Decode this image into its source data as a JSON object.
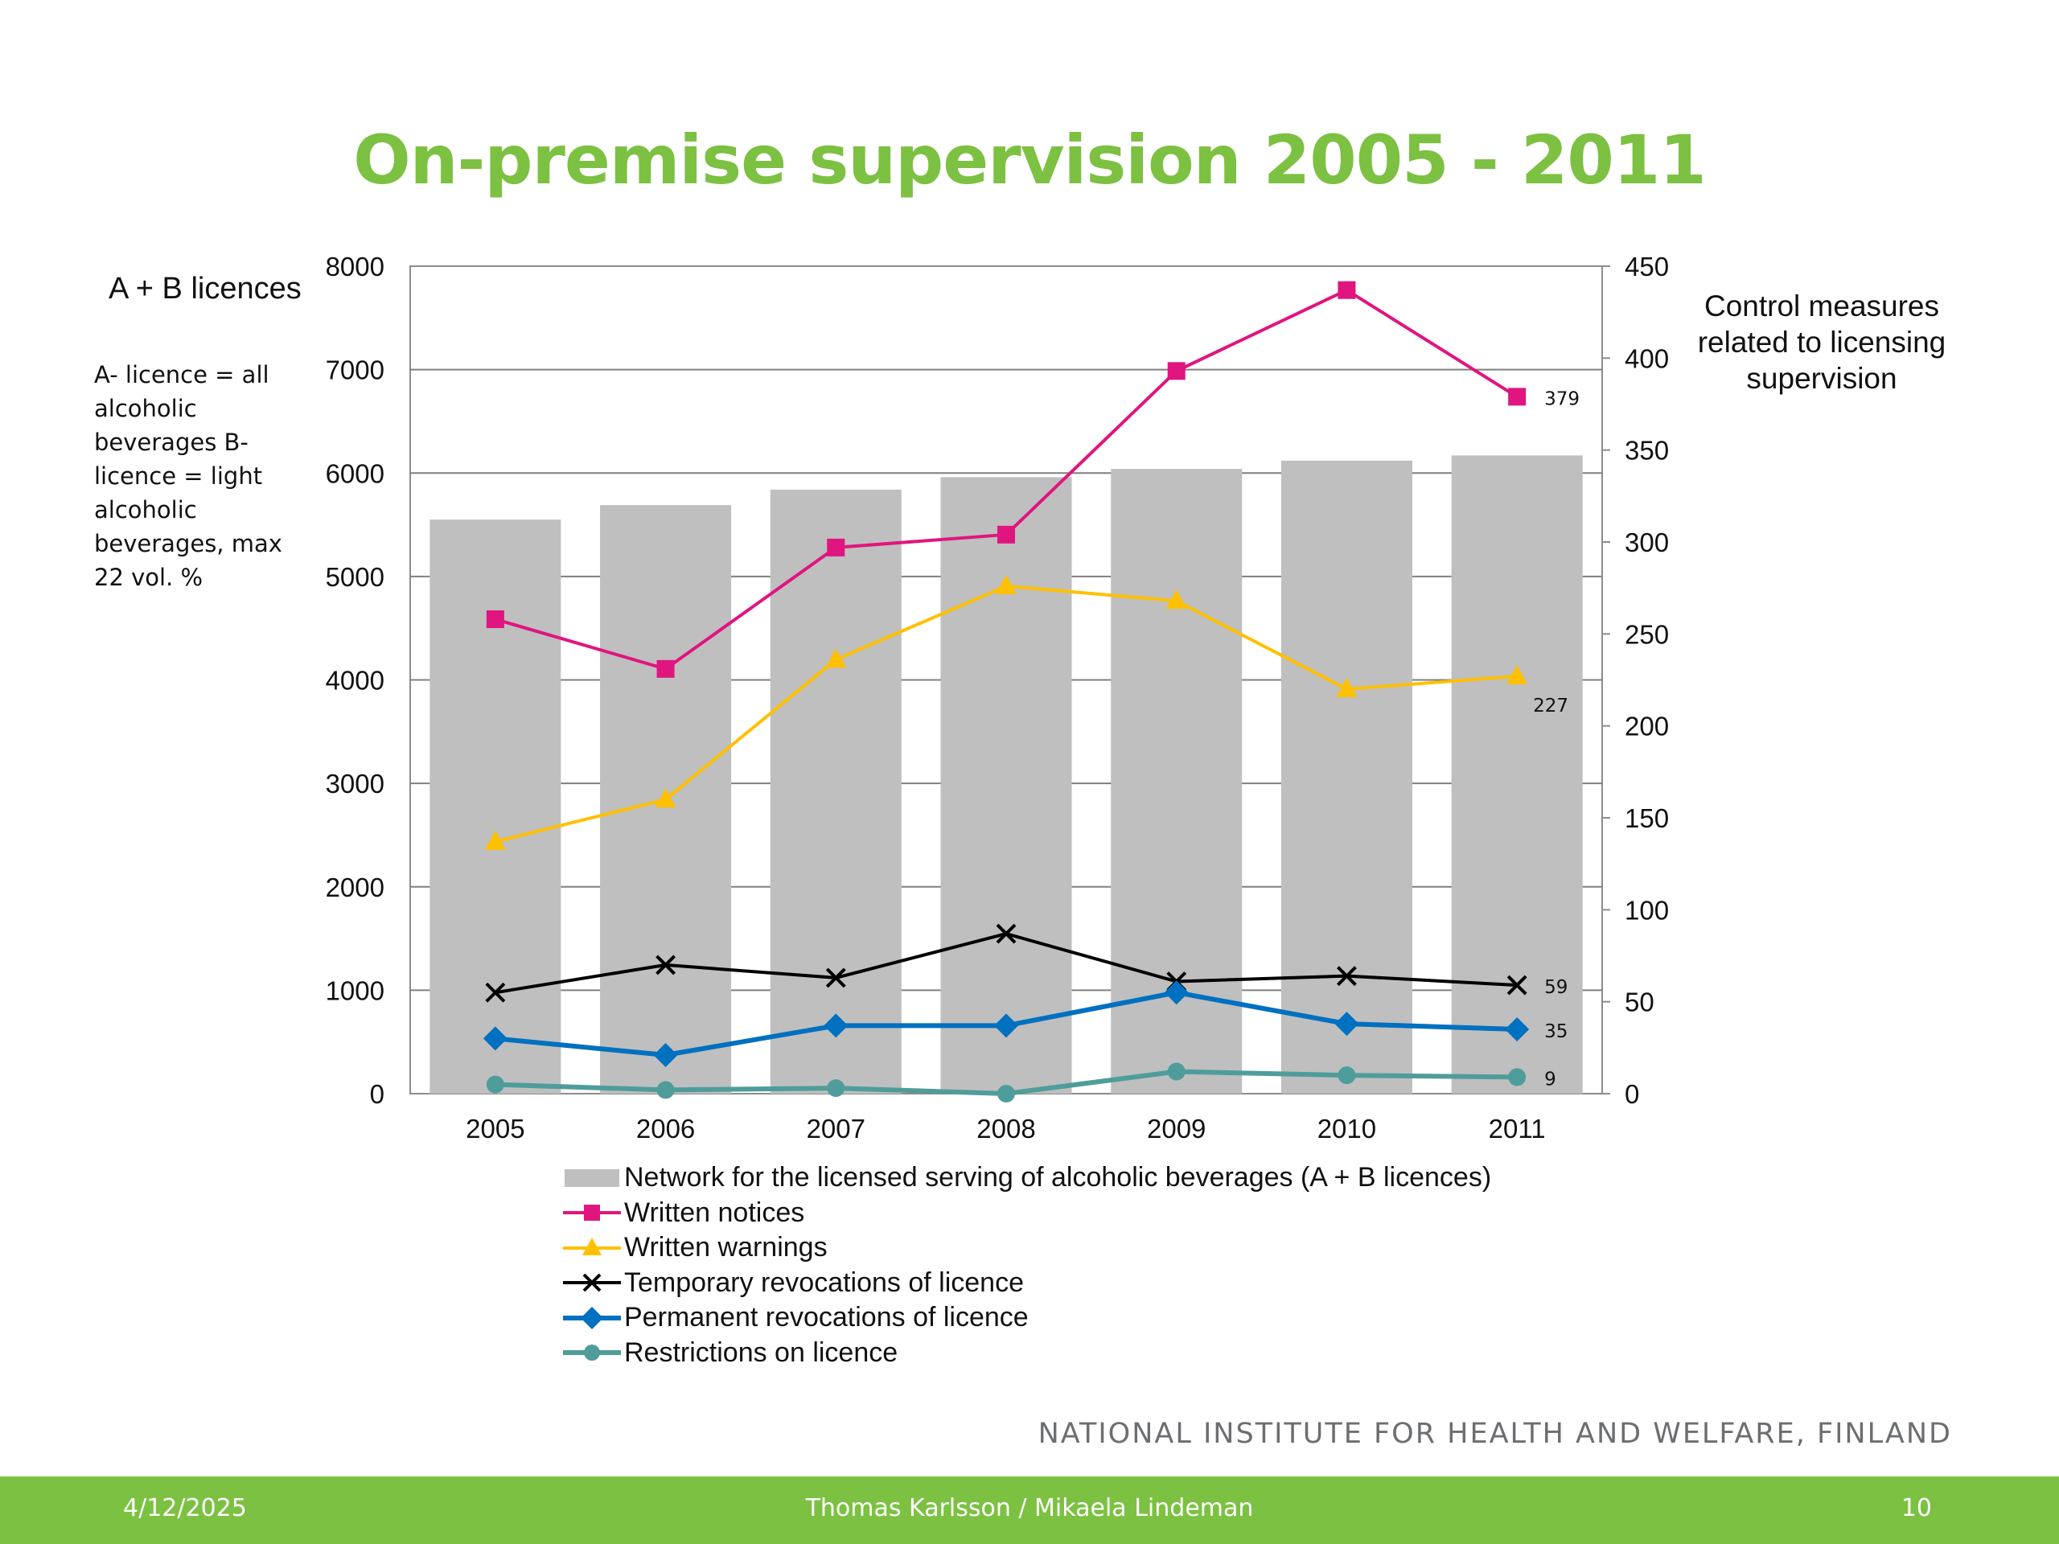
{
  "slide": {
    "title": "On-premise supervision 2005 - 2011",
    "left_axis_title": "A + B licences",
    "left_note": "A- licence = all alcoholic beverages B- licence = light alcoholic beverages, max 22 vol. %",
    "right_axis_title": "Control measures related to licensing supervision",
    "organization": "NATIONAL INSTITUTE FOR HEALTH AND WELFARE, FINLAND"
  },
  "footer": {
    "date": "4/12/2025",
    "authors": "Thomas Karlsson / Mikaela Lindeman",
    "page": "10"
  },
  "colors": {
    "title": "#7cc142",
    "footer_bg": "#7cc142",
    "bars": "#bfbfbf",
    "grid": "#7f7f7f"
  },
  "chart_data": {
    "type": "bar",
    "categories": [
      "2005",
      "2006",
      "2007",
      "2008",
      "2009",
      "2010",
      "2011"
    ],
    "left_axis": {
      "label": "A + B licences",
      "ylim": [
        0,
        8000
      ],
      "ticks": [
        "0",
        "1000",
        "2000",
        "3000",
        "4000",
        "5000",
        "6000",
        "7000",
        "8000"
      ]
    },
    "right_axis": {
      "label": "Control measures related to licensing supervision",
      "ylim": [
        0,
        450
      ],
      "ticks": [
        "0",
        "50",
        "100",
        "150",
        "200",
        "250",
        "300",
        "350",
        "400",
        "450"
      ]
    },
    "grid": true,
    "legend_position": "bottom",
    "series": [
      {
        "name": "Network for the licensed serving of alcoholic beverages (A + B licences)",
        "type": "bar",
        "axis": "left",
        "color": "#bfbfbf",
        "marker": "bar",
        "values": [
          5550,
          5690,
          5840,
          5960,
          6040,
          6120,
          6170
        ]
      },
      {
        "name": "Written notices",
        "type": "line",
        "axis": "right",
        "color": "#e0157f",
        "marker": "square",
        "values": [
          258,
          231,
          297,
          304,
          393,
          437,
          379
        ],
        "end_label": "379"
      },
      {
        "name": "Written warnings",
        "type": "line",
        "axis": "right",
        "color": "#ffc000",
        "marker": "triangle",
        "values": [
          137,
          160,
          236,
          276,
          268,
          220,
          227
        ],
        "end_label": "227"
      },
      {
        "name": "Temporary revocations of licence",
        "type": "line",
        "axis": "right",
        "color": "#000000",
        "marker": "x",
        "values": [
          55,
          70,
          63,
          87,
          61,
          64,
          59
        ],
        "end_label": "59"
      },
      {
        "name": "Permanent revocations of licence",
        "type": "line",
        "axis": "right",
        "color": "#0070c0",
        "marker": "diamond",
        "values": [
          30,
          21,
          37,
          37,
          55,
          38,
          35
        ],
        "end_label": "35"
      },
      {
        "name": "Restrictions on licence",
        "type": "line",
        "axis": "right",
        "color": "#4f9d9b",
        "marker": "circle",
        "values": [
          5,
          2,
          3,
          0,
          12,
          10,
          9
        ],
        "end_label": "9"
      }
    ]
  }
}
